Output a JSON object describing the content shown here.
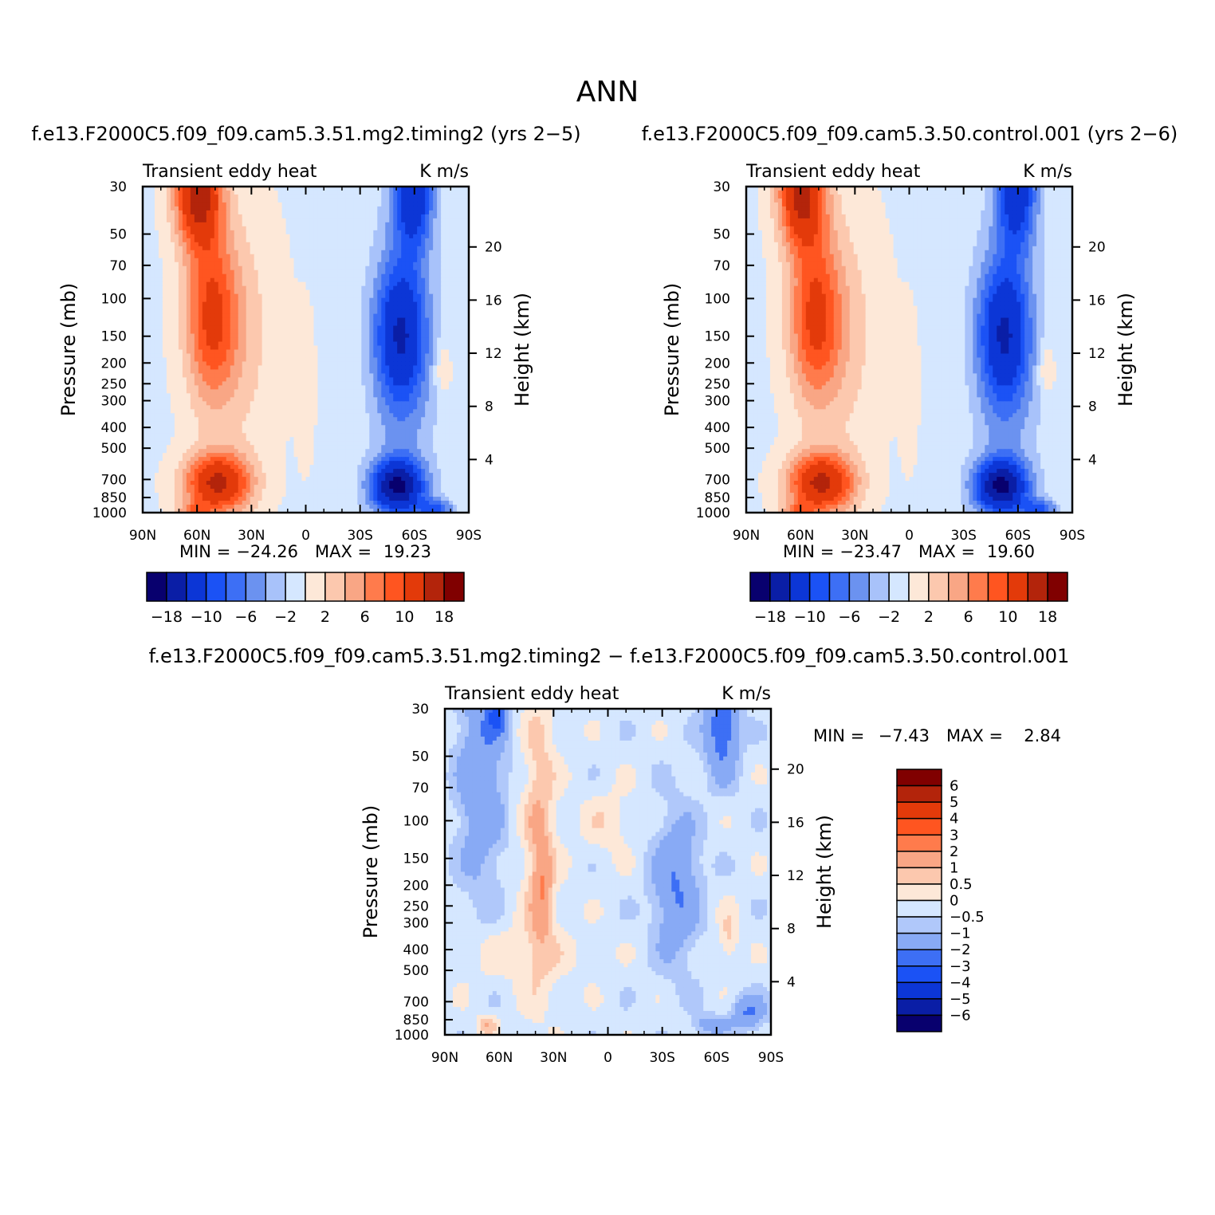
{
  "title": "ANN",
  "colors": {
    "full_palette": [
      "#08006e",
      "#0a1ea6",
      "#0c36d6",
      "#1b52f5",
      "#3d6ff5",
      "#6b92f0",
      "#a8c2fa",
      "#d5e7ff",
      "#fde8d8",
      "#fcc8ae",
      "#f9a685",
      "#ff7b4c",
      "#ff5520",
      "#e33a0a",
      "#b3240b",
      "#800000"
    ],
    "diff_palette": [
      "#08006e",
      "#0a1ea6",
      "#0c36d6",
      "#1b52f5",
      "#3d6ff5",
      "#88aaf5",
      "#b0c8fa",
      "#d5e7ff",
      "#fde8d8",
      "#fcc8ae",
      "#f9a685",
      "#ff7b4c",
      "#ff5520",
      "#e33a0a",
      "#b3240b",
      "#800000"
    ]
  },
  "chart_data": [
    {
      "id": "panel-test",
      "type": "heatmap",
      "case_title": "f.e13.F2000C5.f09_f09.cam5.3.51.mg2.timing2 (yrs 2−5)",
      "left_label": "Transient eddy heat",
      "right_label": "K m/s",
      "xlabel_ticks": [
        "90N",
        "60N",
        "30N",
        "0",
        "30S",
        "60S",
        "90S"
      ],
      "x_values": [
        90,
        60,
        30,
        0,
        -30,
        -60,
        -90
      ],
      "ylabel": "Pressure (mb)",
      "y_ticks": [
        "30",
        "50",
        "70",
        "100",
        "150",
        "200",
        "250",
        "300",
        "400",
        "500",
        "700",
        "850",
        "1000"
      ],
      "y_values": [
        30,
        50,
        70,
        100,
        150,
        200,
        250,
        300,
        400,
        500,
        700,
        850,
        1000
      ],
      "ylim": [
        1000,
        30
      ],
      "right_axis_label": "Height (km)",
      "height_ticks": [
        "20",
        "16",
        "12",
        "8",
        "4"
      ],
      "height_values": [
        20,
        16,
        12,
        8,
        4
      ],
      "stats": {
        "min_label": "MIN =",
        "min": "−24.26",
        "max_label": "MAX =",
        "max": "19.23"
      },
      "colorbar_labels": [
        "−18",
        "−10",
        "−6",
        "−2",
        "2",
        "6",
        "10",
        "18"
      ],
      "levels": [
        -18,
        -14,
        -10,
        -8,
        -6,
        -4,
        -2,
        0,
        2,
        4,
        6,
        8,
        10,
        14,
        18
      ]
    },
    {
      "id": "panel-control",
      "type": "heatmap",
      "case_title": "f.e13.F2000C5.f09_f09.cam5.3.50.control.001 (yrs 2−6)",
      "left_label": "Transient eddy heat",
      "right_label": "K m/s",
      "xlabel_ticks": [
        "90N",
        "60N",
        "30N",
        "0",
        "30S",
        "60S",
        "90S"
      ],
      "x_values": [
        90,
        60,
        30,
        0,
        -30,
        -60,
        -90
      ],
      "ylabel": "Pressure (mb)",
      "y_ticks": [
        "30",
        "50",
        "70",
        "100",
        "150",
        "200",
        "250",
        "300",
        "400",
        "500",
        "700",
        "850",
        "1000"
      ],
      "y_values": [
        30,
        50,
        70,
        100,
        150,
        200,
        250,
        300,
        400,
        500,
        700,
        850,
        1000
      ],
      "ylim": [
        1000,
        30
      ],
      "right_axis_label": "Height (km)",
      "height_ticks": [
        "20",
        "16",
        "12",
        "8",
        "4"
      ],
      "height_values": [
        20,
        16,
        12,
        8,
        4
      ],
      "stats": {
        "min_label": "MIN =",
        "min": "−23.47",
        "max_label": "MAX =",
        "max": "19.60"
      },
      "colorbar_labels": [
        "−18",
        "−10",
        "−6",
        "−2",
        "2",
        "6",
        "10",
        "18"
      ],
      "levels": [
        -18,
        -14,
        -10,
        -8,
        -6,
        -4,
        -2,
        0,
        2,
        4,
        6,
        8,
        10,
        14,
        18
      ]
    },
    {
      "id": "panel-diff",
      "type": "heatmap",
      "case_title": "f.e13.F2000C5.f09_f09.cam5.3.51.mg2.timing2 − f.e13.F2000C5.f09_f09.cam5.3.50.control.001",
      "left_label": "Transient eddy heat",
      "right_label": "K m/s",
      "xlabel_ticks": [
        "90N",
        "60N",
        "30N",
        "0",
        "30S",
        "60S",
        "90S"
      ],
      "x_values": [
        90,
        60,
        30,
        0,
        -30,
        -60,
        -90
      ],
      "ylabel": "Pressure (mb)",
      "y_ticks": [
        "30",
        "50",
        "70",
        "100",
        "150",
        "200",
        "250",
        "300",
        "400",
        "500",
        "700",
        "850",
        "1000"
      ],
      "y_values": [
        30,
        50,
        70,
        100,
        150,
        200,
        250,
        300,
        400,
        500,
        700,
        850,
        1000
      ],
      "ylim": [
        1000,
        30
      ],
      "right_axis_label": "Height (km)",
      "height_ticks": [
        "20",
        "16",
        "12",
        "8",
        "4"
      ],
      "height_values": [
        20,
        16,
        12,
        8,
        4
      ],
      "stats": {
        "min_label": "MIN =",
        "min": "−7.43",
        "max_label": "MAX =",
        "max": "2.84"
      },
      "colorbar_labels": [
        "6",
        "5",
        "4",
        "3",
        "2",
        "1",
        "0.5",
        "0",
        "−0.5",
        "−1",
        "−2",
        "−3",
        "−4",
        "−5",
        "−6"
      ],
      "levels": [
        -6,
        -5,
        -4,
        -3,
        -2,
        -1,
        -0.5,
        0,
        0.5,
        1,
        2,
        3,
        4,
        5,
        6
      ]
    }
  ]
}
